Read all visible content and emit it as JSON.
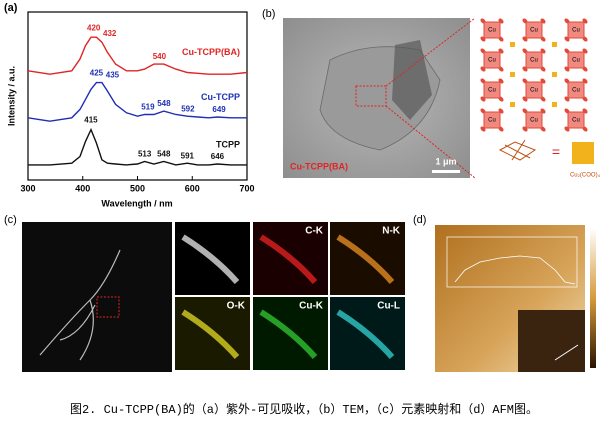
{
  "chart_data": {
    "type": "line",
    "panel_label": "(a)",
    "xlabel": "Wavelength / nm",
    "ylabel": "Intensity / a.u.",
    "x": [
      300,
      340,
      380,
      395,
      405,
      415,
      425,
      435,
      445,
      460,
      480,
      500,
      513,
      530,
      548,
      570,
      591,
      610,
      630,
      646,
      670,
      700
    ],
    "xlim": [
      300,
      700
    ],
    "xticks": [
      300,
      400,
      500,
      600,
      700
    ],
    "ylim": [
      0,
      10
    ],
    "series": [
      {
        "name": "TCPP",
        "color": "#111111",
        "peaks": [
          415,
          513,
          548,
          591,
          646
        ],
        "values": [
          0.9,
          0.9,
          1.0,
          1.4,
          2.3,
          3.0,
          2.2,
          1.2,
          1.0,
          0.95,
          0.9,
          0.95,
          1.1,
          0.95,
          1.1,
          0.9,
          1.0,
          0.9,
          0.9,
          0.95,
          0.9,
          0.9
        ]
      },
      {
        "name": "Cu-TCPP",
        "color": "#1f2fb5",
        "peaks": [
          425,
          435,
          519,
          548,
          592,
          649
        ],
        "values": [
          3.7,
          3.5,
          3.7,
          4.2,
          4.8,
          5.4,
          5.8,
          5.8,
          5.3,
          4.5,
          4.0,
          3.8,
          3.9,
          3.9,
          4.1,
          3.9,
          3.8,
          3.75,
          3.7,
          3.75,
          3.7,
          3.7
        ]
      },
      {
        "name": "Cu-TCPP(BA)",
        "color": "#e02424",
        "peaks": [
          420,
          432,
          540
        ],
        "values": [
          6.5,
          6.3,
          6.5,
          7.2,
          8.0,
          8.5,
          8.5,
          8.2,
          7.6,
          6.9,
          6.5,
          6.5,
          6.6,
          6.9,
          6.9,
          6.6,
          6.4,
          6.35,
          6.3,
          6.3,
          6.3,
          6.4
        ]
      }
    ]
  },
  "panel_b": {
    "panel_label": "(b)",
    "sample": "Cu-TCPP(BA)",
    "scale_bar": "1 μm",
    "node_label": "Cu",
    "unit_label": "Cu₂(COO)₄"
  },
  "panel_c": {
    "panel_label": "(c)",
    "maps": [
      "C-K",
      "N-K",
      "O-K",
      "Cu-K",
      "Cu-L"
    ]
  },
  "panel_d": {
    "panel_label": "(d)"
  },
  "caption": "图2. Cu-TCPP(BA)的（a）紫外-可见吸收，（b）TEM，（c）元素映射和（d）AFM图。"
}
